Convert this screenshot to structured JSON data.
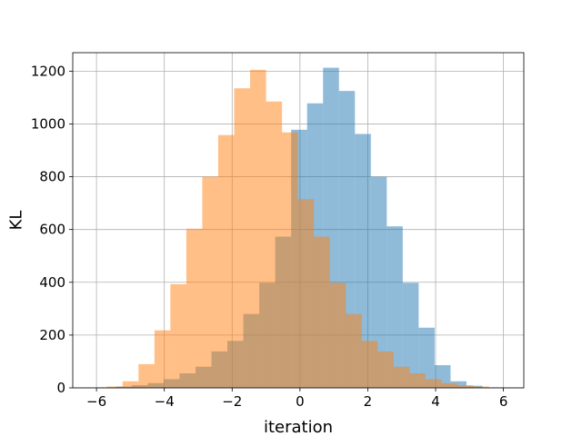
{
  "chart_data": {
    "type": "bar",
    "xlabel": "iteration",
    "ylabel": "KL",
    "xlim": [
      -6.7,
      6.6
    ],
    "ylim": [
      0,
      1270
    ],
    "grid": true,
    "x_ticks": [
      -6,
      -4,
      -2,
      0,
      2,
      4,
      6
    ],
    "x_tick_labels": [
      "−6",
      "−4",
      "−2",
      "0",
      "2",
      "4",
      "6"
    ],
    "y_ticks": [
      0,
      200,
      400,
      600,
      800,
      1000,
      1200
    ],
    "y_tick_labels": [
      "0",
      "200",
      "400",
      "600",
      "800",
      "1000",
      "1200"
    ],
    "series": [
      {
        "color": "#1f77b4",
        "opacity": 0.5,
        "bins": [
          {
            "x0": -5.9,
            "x1": -5.43,
            "value": 2
          },
          {
            "x0": -5.43,
            "x1": -4.96,
            "value": 5
          },
          {
            "x0": -4.96,
            "x1": -4.49,
            "value": 10
          },
          {
            "x0": -4.49,
            "x1": -4.02,
            "value": 18
          },
          {
            "x0": -4.02,
            "x1": -3.55,
            "value": 33
          },
          {
            "x0": -3.55,
            "x1": -3.08,
            "value": 55
          },
          {
            "x0": -3.08,
            "x1": -2.61,
            "value": 80
          },
          {
            "x0": -2.61,
            "x1": -2.14,
            "value": 138
          },
          {
            "x0": -2.14,
            "x1": -1.67,
            "value": 178
          },
          {
            "x0": -1.67,
            "x1": -1.2,
            "value": 280
          },
          {
            "x0": -1.2,
            "x1": -0.73,
            "value": 398
          },
          {
            "x0": -0.73,
            "x1": -0.26,
            "value": 573
          },
          {
            "x0": -0.26,
            "x1": 0.21,
            "value": 978
          },
          {
            "x0": 0.21,
            "x1": 0.68,
            "value": 1078
          },
          {
            "x0": 0.68,
            "x1": 1.15,
            "value": 1213
          },
          {
            "x0": 1.15,
            "x1": 1.62,
            "value": 1125
          },
          {
            "x0": 1.62,
            "x1": 2.09,
            "value": 962
          },
          {
            "x0": 2.09,
            "x1": 2.56,
            "value": 800
          },
          {
            "x0": 2.56,
            "x1": 3.03,
            "value": 612
          },
          {
            "x0": 3.03,
            "x1": 3.5,
            "value": 398
          },
          {
            "x0": 3.5,
            "x1": 3.97,
            "value": 228
          },
          {
            "x0": 3.97,
            "x1": 4.44,
            "value": 86
          },
          {
            "x0": 4.44,
            "x1": 4.91,
            "value": 25
          },
          {
            "x0": 4.91,
            "x1": 5.38,
            "value": 8
          }
        ]
      },
      {
        "color": "#ff7f0e",
        "opacity": 0.5,
        "bins": [
          {
            "x0": -5.7,
            "x1": -5.23,
            "value": 5
          },
          {
            "x0": -5.23,
            "x1": -4.76,
            "value": 25
          },
          {
            "x0": -4.76,
            "x1": -4.29,
            "value": 90
          },
          {
            "x0": -4.29,
            "x1": -3.82,
            "value": 218
          },
          {
            "x0": -3.82,
            "x1": -3.35,
            "value": 393
          },
          {
            "x0": -3.35,
            "x1": -2.88,
            "value": 603
          },
          {
            "x0": -2.88,
            "x1": -2.41,
            "value": 800
          },
          {
            "x0": -2.41,
            "x1": -1.94,
            "value": 958
          },
          {
            "x0": -1.94,
            "x1": -1.47,
            "value": 1135
          },
          {
            "x0": -1.47,
            "x1": -1.0,
            "value": 1205
          },
          {
            "x0": -1.0,
            "x1": -0.53,
            "value": 1085
          },
          {
            "x0": -0.53,
            "x1": -0.06,
            "value": 968
          },
          {
            "x0": -0.06,
            "x1": 0.41,
            "value": 715
          },
          {
            "x0": 0.41,
            "x1": 0.88,
            "value": 573
          },
          {
            "x0": 0.88,
            "x1": 1.35,
            "value": 398
          },
          {
            "x0": 1.35,
            "x1": 1.82,
            "value": 280
          },
          {
            "x0": 1.82,
            "x1": 2.29,
            "value": 178
          },
          {
            "x0": 2.29,
            "x1": 2.76,
            "value": 138
          },
          {
            "x0": 2.76,
            "x1": 3.23,
            "value": 80
          },
          {
            "x0": 3.23,
            "x1": 3.7,
            "value": 55
          },
          {
            "x0": 3.7,
            "x1": 4.17,
            "value": 33
          },
          {
            "x0": 4.17,
            "x1": 4.64,
            "value": 18
          },
          {
            "x0": 4.64,
            "x1": 5.11,
            "value": 10
          },
          {
            "x0": 5.11,
            "x1": 5.58,
            "value": 5
          },
          {
            "x0": 5.58,
            "x1": 6.05,
            "value": 2
          }
        ]
      }
    ]
  }
}
